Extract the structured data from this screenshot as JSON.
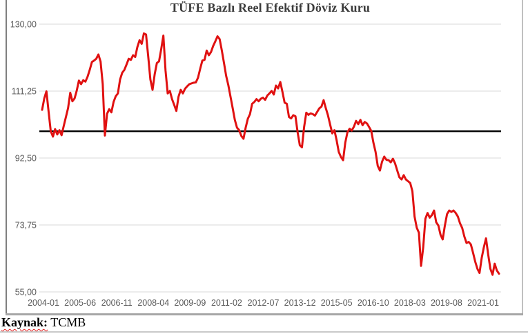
{
  "chart": {
    "title": "TÜFE Bazlı Reel Efektif Döviz Kuru"
  },
  "source": {
    "label": "Kaynak:",
    "value": "TCMB"
  },
  "colors": {
    "series": "#e01111",
    "reference_line": "#000000",
    "gridline": "#d9d9d9",
    "tick_label": "#595959",
    "title": "#3b3b3b",
    "cell_border": "#a6a6a6"
  },
  "chart_data": {
    "type": "line",
    "title": "TÜFE Bazlı Reel Efektif Döviz Kuru",
    "xlabel": "",
    "ylabel": "",
    "x_frequency": "monthly",
    "x_start": "2004-01",
    "x_end": "2021-08",
    "x_tick_labels": [
      "2004-01",
      "2005-06",
      "2006-11",
      "2008-04",
      "2009-09",
      "2011-02",
      "2012-07",
      "2013-12",
      "2015-05",
      "2016-10",
      "2018-03",
      "2019-08",
      "2021-01"
    ],
    "y_ticks": [
      130,
      111.25,
      92.5,
      73.75,
      55
    ],
    "y_tick_labels": [
      "130,00",
      "111,25",
      "92,50",
      "73,75",
      "55,00"
    ],
    "ylim": [
      55,
      130
    ],
    "grid": "horizontal",
    "legend": "none",
    "reference_line": {
      "value": 100,
      "color": "#000000"
    },
    "series": [
      {
        "name": "TÜFE Bazlı Reel Efektif Döviz Kuru",
        "color": "#e01111",
        "values": [
          106.0,
          109.2,
          111.2,
          105.5,
          100.0,
          98.5,
          100.6,
          99.1,
          100.3,
          98.9,
          101.5,
          104.0,
          106.5,
          110.8,
          108.4,
          109.2,
          111.4,
          114.2,
          113.2,
          114.3,
          113.9,
          115.3,
          117.2,
          119.4,
          119.8,
          120.3,
          121.5,
          119.5,
          113.2,
          98.8,
          104.9,
          106.2,
          105.3,
          108.2,
          109.8,
          110.6,
          114.5,
          116.4,
          117.2,
          118.7,
          120.3,
          120.0,
          121.3,
          120.8,
          123.6,
          125.5,
          124.5,
          127.4,
          127.1,
          121.0,
          114.5,
          111.6,
          116.0,
          119.1,
          119.6,
          123.0,
          126.8,
          117.0,
          110.6,
          111.3,
          109.0,
          107.4,
          105.7,
          109.7,
          111.6,
          110.6,
          111.9,
          112.6,
          113.2,
          113.4,
          113.6,
          113.7,
          115.0,
          117.5,
          119.8,
          120.0,
          122.6,
          121.3,
          122.2,
          123.9,
          125.2,
          126.6,
          125.8,
          122.6,
          119.1,
          115.5,
          112.9,
          109.7,
          106.5,
          103.2,
          101.0,
          100.3,
          98.7,
          97.9,
          101.0,
          103.5,
          104.8,
          107.7,
          108.2,
          109.0,
          108.4,
          109.1,
          109.4,
          108.8,
          110.0,
          110.6,
          111.3,
          110.3,
          112.8,
          112.0,
          113.8,
          111.0,
          108.0,
          107.7,
          104.0,
          103.6,
          104.5,
          104.2,
          99.7,
          96.1,
          95.5,
          101.2,
          105.2,
          104.6,
          105.0,
          104.8,
          104.4,
          105.4,
          106.4,
          106.9,
          108.7,
          106.5,
          104.5,
          101.9,
          99.4,
          100.3,
          97.5,
          94.2,
          92.8,
          91.9,
          96.8,
          99.7,
          100.7,
          100.2,
          101.3,
          102.9,
          102.0,
          103.2,
          101.7,
          102.6,
          102.2,
          101.2,
          100.1,
          96.8,
          94.2,
          90.3,
          89.0,
          91.5,
          92.9,
          92.0,
          91.9,
          91.3,
          92.3,
          91.0,
          89.0,
          87.1,
          86.5,
          87.7,
          86.5,
          86.0,
          85.5,
          83.2,
          76.1,
          73.0,
          71.6,
          62.3,
          67.5,
          75.5,
          77.1,
          75.8,
          76.5,
          77.8,
          74.5,
          73.6,
          71.0,
          69.7,
          73.6,
          76.8,
          77.8,
          77.4,
          77.8,
          77.1,
          76.1,
          74.2,
          72.9,
          70.5,
          68.7,
          69.0,
          68.3,
          66.0,
          63.5,
          61.5,
          60.3,
          64.5,
          67.5,
          70.0,
          65.5,
          61.5,
          59.8,
          62.9,
          61.0,
          60.1
        ]
      }
    ]
  }
}
